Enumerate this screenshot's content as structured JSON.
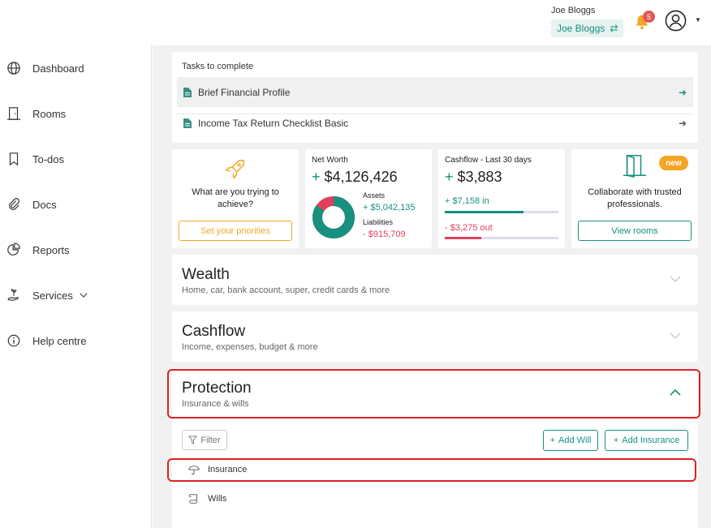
{
  "header": {
    "user_name": "Joe Bloggs",
    "account_label": "Joe Bloggs",
    "notifications": "5"
  },
  "sidebar": {
    "items": [
      {
        "label": "Dashboard"
      },
      {
        "label": "Rooms"
      },
      {
        "label": "To-dos"
      },
      {
        "label": "Docs"
      },
      {
        "label": "Reports"
      },
      {
        "label": "Services"
      },
      {
        "label": "Help centre"
      }
    ]
  },
  "tasks": {
    "title": "Tasks to complete",
    "items": [
      {
        "label": "Brief Financial Profile"
      },
      {
        "label": "Income Tax Return Checklist Basic"
      }
    ]
  },
  "priorities": {
    "question": "What are you trying to achieve?",
    "button": "Set your priorities"
  },
  "net_worth": {
    "title": "Net Worth",
    "value": "$4,126,426",
    "assets_label": "Assets",
    "assets_value": "+ $5,042,135",
    "liabilities_label": "Liabilities",
    "liabilities_value": "- $915,709",
    "assets_share": 0.846
  },
  "cashflow_card": {
    "title": "Cashflow - Last 30 days",
    "value": "$3,883",
    "in_label": "+ $7,158 in",
    "out_label": "- $3,275 out",
    "in_fraction": 0.69,
    "out_fraction": 0.32
  },
  "rooms_card": {
    "badge": "new",
    "text": "Collaborate with trusted professionals.",
    "button": "View rooms"
  },
  "sections": {
    "wealth": {
      "title": "Wealth",
      "subtitle": "Home, car, bank account, super, credit cards & more"
    },
    "cashflow": {
      "title": "Cashflow",
      "subtitle": "Income, expenses, budget & more"
    },
    "protection": {
      "title": "Protection",
      "subtitle": "Insurance & wills"
    }
  },
  "protection_panel": {
    "filter": "Filter",
    "add_will": "Add Will",
    "add_insurance": "Add Insurance",
    "items": [
      {
        "label": "Insurance"
      },
      {
        "label": "Wills"
      }
    ]
  },
  "colors": {
    "accent": "#17907f",
    "warning": "#f5a623",
    "danger": "#e0405a",
    "highlight": "#e02020"
  }
}
